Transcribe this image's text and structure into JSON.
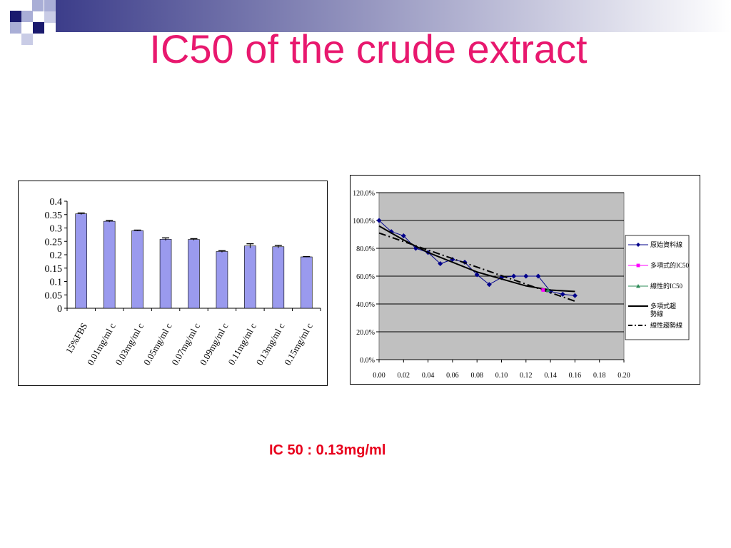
{
  "slide": {
    "title": "IC50 of the crude extract",
    "caption": "IC 50 : 0.13mg/ml",
    "colors": {
      "title": "#e8186e",
      "caption": "#e8001c",
      "deco_dark": "#1a1a6e",
      "deco_light": "#a9aed6"
    }
  },
  "chart_data": [
    {
      "type": "bar",
      "categories": [
        "15%FBS",
        "0.01mg/ml c",
        "0.03mg/ml c",
        "0.05mg/ml c",
        "0.07mg/ml c",
        "0.09mg/ml c",
        "0.11mg/ml c",
        "0.13mg/ml c",
        "0.15mg/ml c"
      ],
      "values": [
        0.353,
        0.325,
        0.29,
        0.258,
        0.257,
        0.212,
        0.233,
        0.23,
        0.192
      ],
      "errors": [
        0.003,
        0.003,
        0.002,
        0.005,
        0.003,
        0.003,
        0.008,
        0.005,
        0.001
      ],
      "yticks": [
        "0",
        "0.05",
        "0.1",
        "0.15",
        "0.2",
        "0.25",
        "0.3",
        "0.35",
        "0.4"
      ],
      "ylim": [
        0,
        0.4
      ],
      "grid": false,
      "bar_color": "#9a9aee"
    },
    {
      "type": "line",
      "xlim": [
        0,
        0.2
      ],
      "ylim": [
        0,
        1.2
      ],
      "xticks": [
        "0.00",
        "0.02",
        "0.04",
        "0.06",
        "0.08",
        "0.10",
        "0.12",
        "0.14",
        "0.16",
        "0.18",
        "0.20"
      ],
      "yticks": [
        "0.0%",
        "20.0%",
        "40.0%",
        "60.0%",
        "80.0%",
        "100.0%",
        "120.0%"
      ],
      "grid": true,
      "plot_background": "#c0c0c0",
      "legend_position": "right",
      "series": [
        {
          "name": "原始資料線",
          "color": "#00008b",
          "marker": "diamond",
          "x": [
            0.0,
            0.01,
            0.02,
            0.03,
            0.04,
            0.05,
            0.06,
            0.07,
            0.08,
            0.09,
            0.1,
            0.11,
            0.12,
            0.13,
            0.14,
            0.15,
            0.16
          ],
          "y": [
            1.0,
            0.92,
            0.89,
            0.8,
            0.77,
            0.69,
            0.72,
            0.7,
            0.61,
            0.54,
            0.59,
            0.6,
            0.6,
            0.6,
            0.49,
            0.47,
            0.46
          ]
        },
        {
          "name": "多項式的IC50",
          "color": "#ff00ff",
          "marker": "square",
          "x": [
            0.134
          ],
          "y": [
            0.5
          ]
        },
        {
          "name": "線性的IC50",
          "color": "#2e8b57",
          "marker": "triangle",
          "x": [
            0.138
          ],
          "y": [
            0.5
          ]
        },
        {
          "name": "多項式趨勢線",
          "color": "#000000",
          "style": "solid",
          "x": [
            0.0,
            0.02,
            0.04,
            0.06,
            0.08,
            0.1,
            0.12,
            0.14,
            0.16
          ],
          "y": [
            0.96,
            0.86,
            0.77,
            0.7,
            0.63,
            0.58,
            0.53,
            0.5,
            0.49
          ]
        },
        {
          "name": "線性趨勢線",
          "color": "#000000",
          "style": "dashdot",
          "x": [
            0.0,
            0.16
          ],
          "y": [
            0.91,
            0.42
          ]
        }
      ]
    }
  ]
}
